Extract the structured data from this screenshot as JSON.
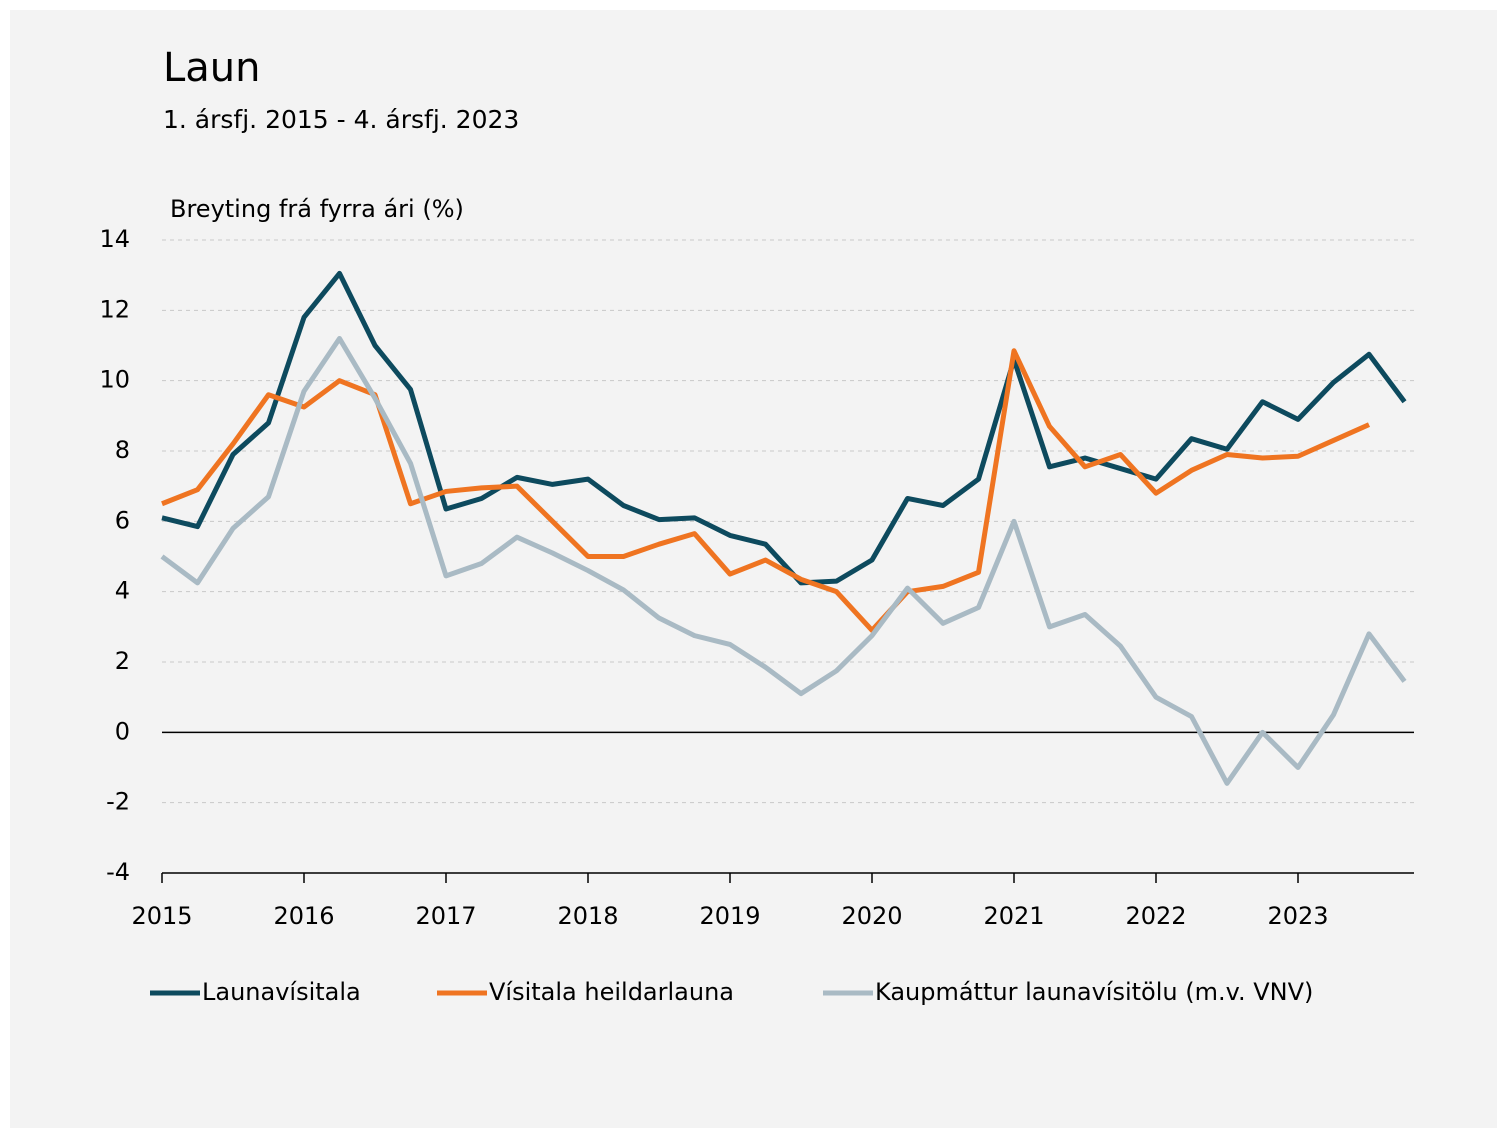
{
  "chart_data": {
    "type": "line",
    "title": "Laun",
    "subtitle": "1. ársfj. 2015 - 4. ársfj. 2023",
    "y_label": "Breyting frá fyrra ári (%)",
    "categories": [
      "2015",
      null,
      null,
      null,
      "2016",
      null,
      null,
      null,
      "2017",
      null,
      null,
      null,
      "2018",
      null,
      null,
      null,
      "2019",
      null,
      null,
      null,
      "2020",
      null,
      null,
      null,
      "2021",
      null,
      null,
      null,
      "2022",
      null,
      null,
      null,
      "2023",
      null,
      null,
      null
    ],
    "series": [
      {
        "name": "Launavísitala",
        "color": "#0d4a5e",
        "values": [
          6.1,
          5.85,
          7.9,
          8.8,
          11.8,
          13.05,
          11.0,
          9.75,
          6.35,
          6.65,
          7.25,
          7.05,
          7.2,
          6.45,
          6.05,
          6.1,
          5.6,
          5.35,
          4.25,
          4.3,
          4.9,
          6.65,
          6.45,
          7.2,
          10.6,
          7.55,
          7.8,
          7.5,
          7.2,
          8.35,
          8.05,
          9.4,
          8.9,
          9.95,
          10.75,
          9.4
        ]
      },
      {
        "name": "Vísitala heildarlauna",
        "color": "#ef7421",
        "values": [
          6.5,
          6.9,
          8.2,
          9.6,
          9.25,
          10.0,
          9.6,
          6.5,
          6.85,
          6.95,
          7.0,
          6.0,
          5.0,
          5.0,
          5.35,
          5.65,
          4.5,
          4.9,
          4.35,
          4.0,
          2.9,
          4.0,
          4.15,
          4.55,
          10.85,
          8.7,
          7.55,
          7.9,
          6.8,
          7.45,
          7.9,
          7.8,
          7.85,
          8.3,
          8.75,
          null
        ]
      },
      {
        "name": "Kaupmáttur launavísitölu (m.v. VNV)",
        "color": "#a9bac4",
        "values": [
          5.0,
          4.25,
          5.8,
          6.7,
          9.7,
          11.2,
          9.5,
          7.65,
          4.45,
          4.8,
          5.55,
          5.1,
          4.6,
          4.05,
          3.25,
          2.75,
          2.5,
          1.85,
          1.1,
          1.75,
          2.75,
          4.1,
          3.1,
          3.55,
          6.0,
          3.0,
          3.35,
          2.45,
          1.0,
          0.45,
          -1.45,
          0.0,
          -1.0,
          0.5,
          2.8,
          1.45
        ]
      }
    ],
    "ylim": [
      -4,
      14
    ],
    "yticks": [
      -4,
      -2,
      0,
      2,
      4,
      6,
      8,
      10,
      12,
      14
    ],
    "grid": true,
    "legend": "bottom"
  }
}
